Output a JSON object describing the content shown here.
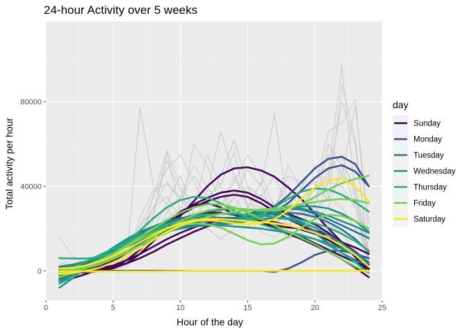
{
  "chart_data": {
    "type": "line",
    "title": "24-hour Activity over 5 weeks",
    "xlabel": "Hour of the day",
    "ylabel": "Total activity per hour",
    "xlim": [
      0,
      25
    ],
    "ylim": [
      -14000,
      118000
    ],
    "x_ticks": [
      0,
      5,
      10,
      15,
      20,
      25
    ],
    "x_tick_labels": [
      "0",
      "5",
      "10",
      "15",
      "20",
      "25"
    ],
    "y_ticks": [
      0,
      40000,
      80000
    ],
    "y_tick_labels": [
      "0",
      "40000",
      "80000"
    ],
    "grid": true,
    "legend_title": "day",
    "legend_position": "right",
    "raw_series_color": "#c8c8c8",
    "raw_series": [
      [
        1000,
        500,
        700,
        900,
        1500,
        6000,
        18000,
        30000,
        42000,
        35000,
        50000,
        40000,
        30000,
        45000,
        35000,
        25000,
        28000,
        45000,
        42000,
        30000,
        22000,
        18000,
        9000,
        1500
      ],
      [
        4000,
        2000,
        1500,
        1200,
        2000,
        9000,
        20000,
        35000,
        57000,
        40000,
        30000,
        55000,
        40000,
        25000,
        30000,
        42000,
        22000,
        30000,
        40000,
        50000,
        35000,
        30000,
        20000,
        9000
      ],
      [
        16000,
        7000,
        3000,
        2000,
        2500,
        5000,
        12000,
        24000,
        30000,
        20000,
        27000,
        20000,
        15000,
        20000,
        26000,
        25000,
        30000,
        28000,
        24000,
        30000,
        60000,
        50000,
        30000,
        5000
      ],
      [
        1000,
        600,
        800,
        700,
        2000,
        8000,
        22000,
        28000,
        52000,
        38000,
        22000,
        35000,
        41000,
        56000,
        30000,
        28000,
        22000,
        27000,
        32000,
        38000,
        66000,
        70000,
        81000,
        14000
      ],
      [
        2000,
        1000,
        700,
        600,
        1500,
        6000,
        25000,
        38000,
        41000,
        34000,
        30000,
        32000,
        45000,
        62000,
        40000,
        27000,
        32000,
        30000,
        26000,
        34000,
        45000,
        97000,
        36000,
        6000
      ],
      [
        500,
        300,
        400,
        500,
        1000,
        4000,
        15000,
        26000,
        56000,
        27000,
        60000,
        50000,
        30000,
        38000,
        32000,
        30000,
        28000,
        50000,
        38000,
        42000,
        33000,
        88000,
        62000,
        5000
      ],
      [
        3000,
        1500,
        1000,
        800,
        1200,
        7000,
        13000,
        36000,
        48000,
        55000,
        42000,
        30000,
        25000,
        35000,
        48000,
        40000,
        74000,
        28000,
        30000,
        26000,
        42000,
        40000,
        30000,
        2000
      ],
      [
        1500,
        900,
        600,
        600,
        1800,
        5000,
        77000,
        40000,
        31000,
        34000,
        45000,
        35000,
        28000,
        35000,
        25000,
        18000,
        16000,
        20000,
        30000,
        40000,
        55000,
        45000,
        78000,
        22000
      ],
      [
        800,
        400,
        300,
        400,
        1000,
        5000,
        16000,
        30000,
        35000,
        25000,
        23000,
        38000,
        66000,
        45000,
        30000,
        36000,
        30000,
        41000,
        28000,
        25000,
        30000,
        50000,
        40000,
        8000
      ],
      [
        1200,
        700,
        500,
        400,
        1300,
        3000,
        10000,
        20000,
        32000,
        45000,
        25000,
        22000,
        20000,
        30000,
        40000,
        35000,
        45000,
        30000,
        20000,
        32000,
        42000,
        80000,
        60000,
        4000
      ],
      [
        6000,
        2000,
        1000,
        700,
        1100,
        4000,
        12000,
        18000,
        25000,
        30000,
        28000,
        25000,
        22000,
        25000,
        20000,
        30000,
        25000,
        15000,
        18000,
        28000,
        35000,
        45000,
        40000,
        10000
      ],
      [
        300,
        200,
        250,
        300,
        600,
        2000,
        8000,
        15000,
        28000,
        35000,
        22000,
        25000,
        30000,
        42000,
        55000,
        45000,
        30000,
        22000,
        28000,
        35000,
        48000,
        55000,
        35000,
        3000
      ]
    ],
    "series": [
      {
        "name": "Sunday",
        "color": "#440154",
        "curves": [
          [
            0,
            -1000,
            -600,
            200,
            1500,
            5000,
            10000,
            16500,
            23000,
            28000,
            31000,
            32000,
            30000,
            27000,
            25000,
            23000,
            21500,
            20500,
            20000,
            19000,
            17000,
            13500,
            9000,
            4000
          ],
          [
            2000,
            300,
            700,
            2000,
            5000,
            9000,
            14000,
            19000,
            23500,
            27500,
            31500,
            34500,
            37000,
            38000,
            37000,
            34000,
            30000,
            27000,
            24500,
            22000,
            18000,
            13000,
            7000,
            800
          ],
          [
            0,
            300,
            1500,
            3500,
            6000,
            9500,
            13500,
            18000,
            22500,
            26500,
            30000,
            33000,
            35000,
            36000,
            35000,
            32000,
            28000,
            24500,
            21500,
            18000,
            14500,
            11000,
            7500,
            3000
          ],
          [
            -600,
            -900,
            -800,
            -200,
            1200,
            3500,
            8000,
            14000,
            20000,
            26000,
            33000,
            40000,
            45500,
            48500,
            49000,
            47500,
            44500,
            39500,
            34000,
            27000,
            20000,
            13500,
            6500,
            -1000
          ],
          [
            500,
            600,
            800,
            1200,
            2000,
            3500,
            6000,
            9000,
            12500,
            15500,
            18500,
            21000,
            23000,
            24000,
            24500,
            24000,
            23000,
            21500,
            19500,
            17500,
            15500,
            13500,
            11000,
            8000
          ],
          [
            -5000,
            -3500,
            -1500,
            1000,
            4500,
            8500,
            13000,
            17500,
            21500,
            24500,
            26500,
            27500,
            27500,
            26500,
            25000,
            23000,
            21000,
            18500,
            16000,
            13000,
            10000,
            7000,
            4000,
            1000
          ],
          [
            2000,
            1500,
            1000,
            1200,
            2500,
            5000,
            8000,
            11500,
            15000,
            18000,
            20500,
            22500,
            24000,
            24500,
            24000,
            22500,
            20000,
            17500,
            15000,
            12000,
            9000,
            5500,
            1500,
            -3000
          ]
        ]
      },
      {
        "name": "Monday",
        "color": "#3b528b",
        "curves": [
          [
            -2000,
            -500,
            1500,
            4500,
            8000,
            12000,
            16000,
            19500,
            22500,
            24500,
            25500,
            25500,
            25000,
            24500,
            24500,
            25500,
            28000,
            32000,
            38000,
            44000,
            48500,
            50000,
            47000,
            40000
          ],
          [
            0,
            0,
            0,
            0,
            0,
            0,
            0,
            0,
            0,
            0,
            0,
            0,
            0,
            0,
            0,
            0,
            -500,
            1000,
            4000,
            7500,
            9500,
            9500,
            8000,
            6000
          ],
          [
            -3000,
            -1500,
            500,
            3000,
            6000,
            9500,
            13000,
            16500,
            19500,
            22000,
            24000,
            25000,
            25000,
            25000,
            25500,
            27000,
            30500,
            35500,
            42000,
            48500,
            53000,
            54000,
            50500,
            40000
          ]
        ]
      },
      {
        "name": "Tuesday",
        "color": "#2c728e",
        "curves": [
          [
            -4000,
            -1500,
            1500,
            5000,
            9000,
            13500,
            17500,
            21000,
            23500,
            25000,
            25500,
            25000,
            24500,
            24500,
            25500,
            27000,
            28500,
            29500,
            29000,
            27000,
            24500,
            21500,
            18500,
            15500
          ],
          [
            1000,
            2500,
            4500,
            7000,
            10000,
            13000,
            16000,
            19000,
            22000,
            24500,
            26500,
            28000,
            29000,
            29500,
            29000,
            28000,
            26500,
            24500,
            22000,
            19000,
            15500,
            11500,
            7500,
            3000
          ],
          [
            -2000,
            0,
            2500,
            5500,
            8500,
            11500,
            14500,
            17500,
            20000,
            22000,
            23000,
            23500,
            24000,
            25000,
            27000,
            28500,
            28500,
            26500,
            23000,
            18000,
            13000,
            8500,
            5000,
            2500
          ],
          [
            0,
            1500,
            3500,
            6500,
            9500,
            12500,
            15500,
            18000,
            20000,
            21000,
            21500,
            21500,
            22000,
            23000,
            24500,
            26000,
            27000,
            27500,
            27000,
            25500,
            23000,
            19500,
            15000,
            9000
          ]
        ]
      },
      {
        "name": "Wednesday",
        "color": "#21908c",
        "curves": [
          [
            -5000,
            -2000,
            2000,
            6500,
            11000,
            15000,
            18500,
            21000,
            22500,
            23000,
            22500,
            22000,
            22000,
            22500,
            23500,
            24500,
            25000,
            24500,
            23000,
            20500,
            17000,
            13000,
            8500,
            4000
          ],
          [
            -3000,
            -500,
            2500,
            6000,
            9500,
            13000,
            16500,
            19500,
            22000,
            23500,
            24000,
            24000,
            23500,
            23500,
            24000,
            25500,
            27500,
            29500,
            30500,
            30500,
            29500,
            27000,
            23500,
            18500
          ],
          [
            -8000,
            -3500,
            1500,
            6500,
            11000,
            14500,
            17000,
            19000,
            20000,
            20500,
            21000,
            21500,
            22500,
            24000,
            26000,
            28000,
            29500,
            30000,
            29500,
            28000,
            26000,
            23500,
            21000,
            18000
          ],
          [
            2000,
            3000,
            4500,
            6500,
            9000,
            11500,
            14000,
            16500,
            18500,
            20000,
            21000,
            21500,
            21500,
            21000,
            20500,
            20000,
            19000,
            18000,
            16500,
            15000,
            13000,
            10500,
            7500,
            4000
          ]
        ]
      },
      {
        "name": "Thursday",
        "color": "#27ad81",
        "curves": [
          [
            6000,
            5800,
            5800,
            6500,
            9000,
            13500,
            19000,
            25000,
            30000,
            33500,
            35000,
            34500,
            32000,
            28500,
            25000,
            22000,
            20000,
            18500,
            17000,
            15000,
            12000,
            8500,
            4000,
            -1000
          ],
          [
            -1000,
            1500,
            4500,
            7500,
            10500,
            13500,
            16500,
            19500,
            22000,
            24000,
            25500,
            26500,
            27000,
            27000,
            26500,
            26000,
            25500,
            25000,
            24000,
            22500,
            20500,
            17500,
            14000,
            9500
          ],
          [
            -6000,
            -3000,
            1000,
            5000,
            9000,
            12500,
            16000,
            19000,
            21500,
            23500,
            24500,
            25000,
            24500,
            24000,
            24500,
            26500,
            30000,
            34000,
            37500,
            39000,
            38500,
            36000,
            32500,
            28000
          ]
        ]
      },
      {
        "name": "Friday",
        "color": "#75d054",
        "curves": [
          [
            0,
            500,
            1500,
            3000,
            5500,
            8500,
            12000,
            16000,
            20000,
            23500,
            26500,
            28500,
            29500,
            29500,
            29000,
            28500,
            28500,
            29500,
            31500,
            35000,
            38500,
            41500,
            43500,
            45000
          ],
          [
            0,
            1000,
            2500,
            5000,
            8000,
            12000,
            16000,
            20000,
            24000,
            27500,
            30000,
            31500,
            31500,
            30000,
            27500,
            24500,
            21500,
            18500,
            15500,
            12500,
            9000,
            5500,
            2000,
            -1000
          ],
          [
            -3000,
            -1000,
            1500,
            4500,
            8000,
            11500,
            15000,
            18000,
            20500,
            22000,
            22500,
            22000,
            20500,
            17500,
            14500,
            12500,
            13000,
            16000,
            20500,
            24500,
            26500,
            26000,
            23500,
            20000
          ],
          [
            -1000,
            0,
            1500,
            3500,
            6000,
            9000,
            12000,
            15000,
            18000,
            21000,
            23500,
            25500,
            27000,
            28000,
            28500,
            29000,
            29500,
            30500,
            31500,
            32500,
            33500,
            34000,
            33500,
            32000
          ]
        ]
      },
      {
        "name": "Saturday",
        "color": "#fde725",
        "curves": [
          [
            -1500,
            -1000,
            0,
            1500,
            4000,
            7000,
            10500,
            14500,
            18500,
            21500,
            23500,
            24000,
            23500,
            22500,
            22000,
            22500,
            24500,
            28500,
            34000,
            39500,
            43000,
            43500,
            40000,
            33000
          ],
          [
            -300,
            -300,
            -300,
            -300,
            -300,
            -300,
            -300,
            -300,
            -200,
            -100,
            0,
            0,
            0,
            0,
            0,
            0,
            0,
            0,
            0,
            0,
            0,
            0,
            0,
            0
          ],
          [
            1000,
            1500,
            2500,
            4500,
            7000,
            10000,
            13500,
            17000,
            20000,
            22500,
            24000,
            24500,
            24500,
            24000,
            23500,
            23000,
            22500,
            21500,
            20000,
            18000,
            15500,
            12000,
            7500,
            2000
          ]
        ]
      }
    ]
  }
}
